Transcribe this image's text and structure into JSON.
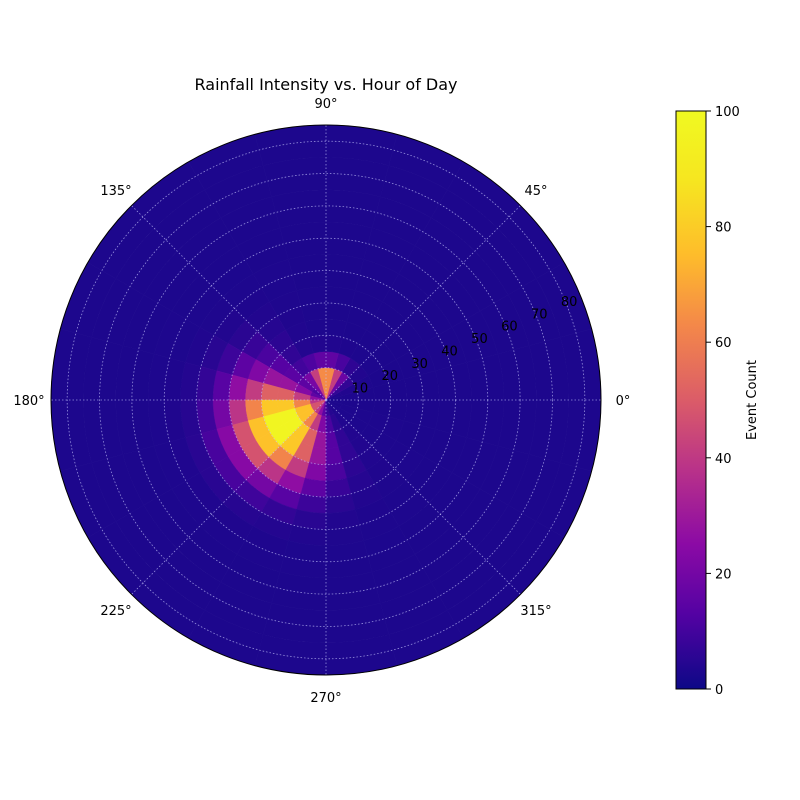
{
  "chart_data": {
    "type": "heatmap",
    "projection": "polar",
    "title": "Rainfall Intensity vs. Hour of Day",
    "angle_ticks": [
      {
        "deg": 0,
        "label": "0°"
      },
      {
        "deg": 45,
        "label": "45°"
      },
      {
        "deg": 90,
        "label": "90°"
      },
      {
        "deg": 135,
        "label": "135°"
      },
      {
        "deg": 180,
        "label": "180°"
      },
      {
        "deg": 225,
        "label": "225°"
      },
      {
        "deg": 270,
        "label": "270°"
      },
      {
        "deg": 315,
        "label": "315°"
      }
    ],
    "radial_ticks": [
      {
        "value": 10,
        "label": "10"
      },
      {
        "value": 20,
        "label": "20"
      },
      {
        "value": 30,
        "label": "30"
      },
      {
        "value": 40,
        "label": "40"
      },
      {
        "value": 50,
        "label": "50"
      },
      {
        "value": 60,
        "label": "60"
      },
      {
        "value": 70,
        "label": "70"
      },
      {
        "value": 80,
        "label": "80"
      }
    ],
    "rlim": [
      0,
      85
    ],
    "angle_bins_deg": 15,
    "radial_bin_width": 5,
    "grid": true,
    "colormap": "plasma",
    "colorbar": {
      "label": "Event Count",
      "range": [
        0,
        100
      ],
      "ticks": [
        {
          "value": 0,
          "label": "0"
        },
        {
          "value": 20,
          "label": "20"
        },
        {
          "value": 40,
          "label": "40"
        },
        {
          "value": 60,
          "label": "60"
        },
        {
          "value": 80,
          "label": "80"
        },
        {
          "value": 100,
          "label": "100"
        }
      ]
    },
    "hotspots": [
      {
        "theta_deg": 210,
        "r": 15,
        "count": 100,
        "angular_spread_deg": 32,
        "radial_spread": 10
      },
      {
        "theta_deg": 90,
        "r": 5,
        "count": 78,
        "angular_spread_deg": 22,
        "radial_spread": 4
      }
    ],
    "background_count": 3
  }
}
